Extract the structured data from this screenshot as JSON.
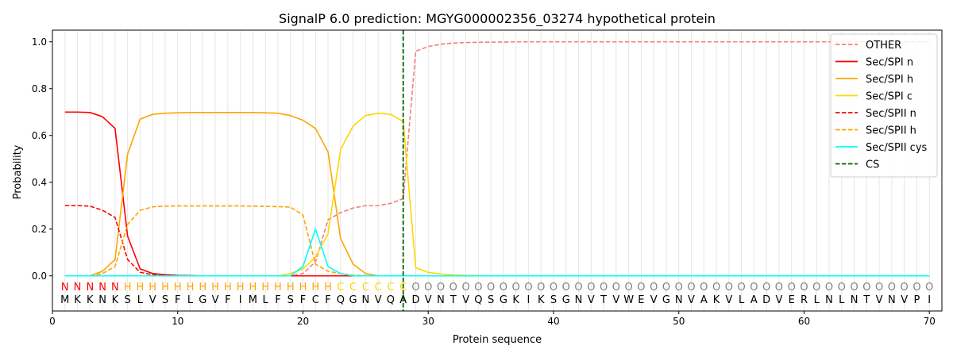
{
  "chart_data": {
    "type": "line",
    "title": "SignalP 6.0 prediction: MGYG000002356_03274 hypothetical protein",
    "xlabel": "Protein sequence",
    "ylabel": "Probability",
    "xlim": [
      0,
      71
    ],
    "ylim": [
      -0.15,
      1.05
    ],
    "xticks": [
      0,
      10,
      20,
      30,
      40,
      50,
      60,
      70
    ],
    "yticks": [
      0.0,
      0.2,
      0.4,
      0.6,
      0.8,
      1.0
    ],
    "vertical_grid": true,
    "legend_position": "top-right",
    "cleavage_site": 28,
    "sequence": [
      "M",
      "K",
      "K",
      "N",
      "K",
      "S",
      "L",
      "V",
      "S",
      "F",
      "L",
      "G",
      "V",
      "F",
      "I",
      "M",
      "L",
      "F",
      "S",
      "F",
      "C",
      "F",
      "Q",
      "G",
      "N",
      "V",
      "Q",
      "A",
      "D",
      "V",
      "N",
      "T",
      "V",
      "Q",
      "S",
      "G",
      "K",
      "I",
      "K",
      "S",
      "G",
      "N",
      "V",
      "T",
      "V",
      "W",
      "E",
      "V",
      "G",
      "N",
      "V",
      "A",
      "K",
      "V",
      "L",
      "A",
      "D",
      "V",
      "E",
      "R",
      "L",
      "N",
      "L",
      "N",
      "T",
      "V",
      "N",
      "V",
      "P",
      "I"
    ],
    "region_labels": [
      "N",
      "N",
      "N",
      "N",
      "N",
      "H",
      "H",
      "H",
      "H",
      "H",
      "H",
      "H",
      "H",
      "H",
      "H",
      "H",
      "H",
      "H",
      "H",
      "H",
      "H",
      "H",
      "C",
      "C",
      "C",
      "C",
      "C",
      "C",
      "O",
      "O",
      "O",
      "O",
      "O",
      "O",
      "O",
      "O",
      "O",
      "O",
      "O",
      "O",
      "O",
      "O",
      "O",
      "O",
      "O",
      "O",
      "O",
      "O",
      "O",
      "O",
      "O",
      "O",
      "O",
      "O",
      "O",
      "O",
      "O",
      "O",
      "O",
      "O",
      "O",
      "O",
      "O",
      "O",
      "O",
      "O",
      "O",
      "O",
      "O",
      "O"
    ],
    "region_colors": {
      "N": "#ff0000",
      "H": "#ffa500",
      "C": "#ffd700",
      "O": "#808080"
    },
    "series": [
      {
        "name": "OTHER",
        "color": "#f08080",
        "dash": true,
        "values": [
          0.0,
          0.0,
          0.0,
          0.0,
          0.0,
          0.0,
          0.0,
          0.0,
          0.0,
          0.0,
          0.0,
          0.0,
          0.0,
          0.0,
          0.0,
          0.0,
          0.0,
          0.0,
          0.0,
          0.01,
          0.06,
          0.24,
          0.27,
          0.29,
          0.3,
          0.3,
          0.31,
          0.33,
          0.96,
          0.98,
          0.99,
          0.995,
          0.997,
          0.998,
          0.999,
          0.999,
          1.0,
          1.0,
          1.0,
          1.0,
          1.0,
          1.0,
          1.0,
          1.0,
          1.0,
          1.0,
          1.0,
          1.0,
          1.0,
          1.0,
          1.0,
          1.0,
          1.0,
          1.0,
          1.0,
          1.0,
          1.0,
          1.0,
          1.0,
          1.0,
          1.0,
          1.0,
          1.0,
          1.0,
          1.0,
          1.0,
          1.0,
          1.0,
          1.0,
          1.0
        ]
      },
      {
        "name": "Sec/SPI n",
        "color": "#ff0000",
        "dash": false,
        "values": [
          0.7,
          0.7,
          0.698,
          0.68,
          0.63,
          0.17,
          0.03,
          0.01,
          0.005,
          0.002,
          0.001,
          0.0,
          0.0,
          0.0,
          0.0,
          0.0,
          0.0,
          0.0,
          0.0,
          0.0,
          0.0,
          0.0,
          0.0,
          0.0,
          0.0,
          0.0,
          0.0,
          0.0,
          0.0,
          0.0,
          0.0,
          0.0,
          0.0,
          0.0,
          0.0,
          0.0,
          0.0,
          0.0,
          0.0,
          0.0,
          0.0,
          0.0,
          0.0,
          0.0,
          0.0,
          0.0,
          0.0,
          0.0,
          0.0,
          0.0,
          0.0,
          0.0,
          0.0,
          0.0,
          0.0,
          0.0,
          0.0,
          0.0,
          0.0,
          0.0,
          0.0,
          0.0,
          0.0,
          0.0,
          0.0,
          0.0,
          0.0,
          0.0,
          0.0,
          0.0
        ]
      },
      {
        "name": "Sec/SPI h",
        "color": "#ffa500",
        "dash": false,
        "values": [
          0.0,
          0.0,
          0.0,
          0.02,
          0.07,
          0.52,
          0.67,
          0.69,
          0.695,
          0.697,
          0.698,
          0.698,
          0.698,
          0.698,
          0.698,
          0.698,
          0.697,
          0.695,
          0.685,
          0.665,
          0.63,
          0.53,
          0.16,
          0.05,
          0.01,
          0.0,
          0.0,
          0.0,
          0.0,
          0.0,
          0.0,
          0.0,
          0.0,
          0.0,
          0.0,
          0.0,
          0.0,
          0.0,
          0.0,
          0.0,
          0.0,
          0.0,
          0.0,
          0.0,
          0.0,
          0.0,
          0.0,
          0.0,
          0.0,
          0.0,
          0.0,
          0.0,
          0.0,
          0.0,
          0.0,
          0.0,
          0.0,
          0.0,
          0.0,
          0.0,
          0.0,
          0.0,
          0.0,
          0.0,
          0.0,
          0.0,
          0.0,
          0.0,
          0.0,
          0.0
        ]
      },
      {
        "name": "Sec/SPI c",
        "color": "#ffd700",
        "dash": false,
        "values": [
          0.0,
          0.0,
          0.0,
          0.0,
          0.0,
          0.0,
          0.0,
          0.0,
          0.0,
          0.0,
          0.0,
          0.0,
          0.0,
          0.0,
          0.0,
          0.0,
          0.0,
          0.0,
          0.01,
          0.03,
          0.08,
          0.18,
          0.54,
          0.64,
          0.685,
          0.695,
          0.69,
          0.66,
          0.035,
          0.015,
          0.008,
          0.004,
          0.002,
          0.001,
          0.0,
          0.0,
          0.0,
          0.0,
          0.0,
          0.0,
          0.0,
          0.0,
          0.0,
          0.0,
          0.0,
          0.0,
          0.0,
          0.0,
          0.0,
          0.0,
          0.0,
          0.0,
          0.0,
          0.0,
          0.0,
          0.0,
          0.0,
          0.0,
          0.0,
          0.0,
          0.0,
          0.0,
          0.0,
          0.0,
          0.0,
          0.0,
          0.0,
          0.0,
          0.0,
          0.0
        ]
      },
      {
        "name": "Sec/SPII n",
        "color": "#ff0000",
        "dash": true,
        "values": [
          0.3,
          0.3,
          0.298,
          0.28,
          0.25,
          0.07,
          0.015,
          0.005,
          0.002,
          0.001,
          0.0,
          0.0,
          0.0,
          0.0,
          0.0,
          0.0,
          0.0,
          0.0,
          0.0,
          0.0,
          0.0,
          0.0,
          0.0,
          0.0,
          0.0,
          0.0,
          0.0,
          0.0,
          0.0,
          0.0,
          0.0,
          0.0,
          0.0,
          0.0,
          0.0,
          0.0,
          0.0,
          0.0,
          0.0,
          0.0,
          0.0,
          0.0,
          0.0,
          0.0,
          0.0,
          0.0,
          0.0,
          0.0,
          0.0,
          0.0,
          0.0,
          0.0,
          0.0,
          0.0,
          0.0,
          0.0,
          0.0,
          0.0,
          0.0,
          0.0,
          0.0,
          0.0,
          0.0,
          0.0,
          0.0,
          0.0,
          0.0,
          0.0,
          0.0,
          0.0
        ]
      },
      {
        "name": "Sec/SPII h",
        "color": "#ffa500",
        "dash": true,
        "values": [
          0.0,
          0.0,
          0.0,
          0.01,
          0.04,
          0.22,
          0.28,
          0.295,
          0.298,
          0.299,
          0.299,
          0.299,
          0.299,
          0.299,
          0.299,
          0.298,
          0.297,
          0.296,
          0.294,
          0.26,
          0.05,
          0.02,
          0.01,
          0.003,
          0.001,
          0.0,
          0.0,
          0.0,
          0.0,
          0.0,
          0.0,
          0.0,
          0.0,
          0.0,
          0.0,
          0.0,
          0.0,
          0.0,
          0.0,
          0.0,
          0.0,
          0.0,
          0.0,
          0.0,
          0.0,
          0.0,
          0.0,
          0.0,
          0.0,
          0.0,
          0.0,
          0.0,
          0.0,
          0.0,
          0.0,
          0.0,
          0.0,
          0.0,
          0.0,
          0.0,
          0.0,
          0.0,
          0.0,
          0.0,
          0.0,
          0.0,
          0.0,
          0.0,
          0.0,
          0.0
        ]
      },
      {
        "name": "Sec/SPII cys",
        "color": "#00ffff",
        "dash": false,
        "values": [
          0.0,
          0.0,
          0.0,
          0.0,
          0.0,
          0.0,
          0.0,
          0.0,
          0.0,
          0.0,
          0.0,
          0.0,
          0.0,
          0.0,
          0.0,
          0.0,
          0.0,
          0.0,
          0.0,
          0.04,
          0.2,
          0.04,
          0.01,
          0.0,
          0.0,
          0.0,
          0.0,
          0.0,
          0.0,
          0.0,
          0.0,
          0.0,
          0.0,
          0.0,
          0.0,
          0.0,
          0.0,
          0.0,
          0.0,
          0.0,
          0.0,
          0.0,
          0.0,
          0.0,
          0.0,
          0.0,
          0.0,
          0.0,
          0.0,
          0.0,
          0.0,
          0.0,
          0.0,
          0.0,
          0.0,
          0.0,
          0.0,
          0.0,
          0.0,
          0.0,
          0.0,
          0.0,
          0.0,
          0.0,
          0.0,
          0.0,
          0.0,
          0.0,
          0.0,
          0.0
        ]
      }
    ],
    "cs_legend": {
      "name": "CS",
      "color": "#006400"
    }
  }
}
